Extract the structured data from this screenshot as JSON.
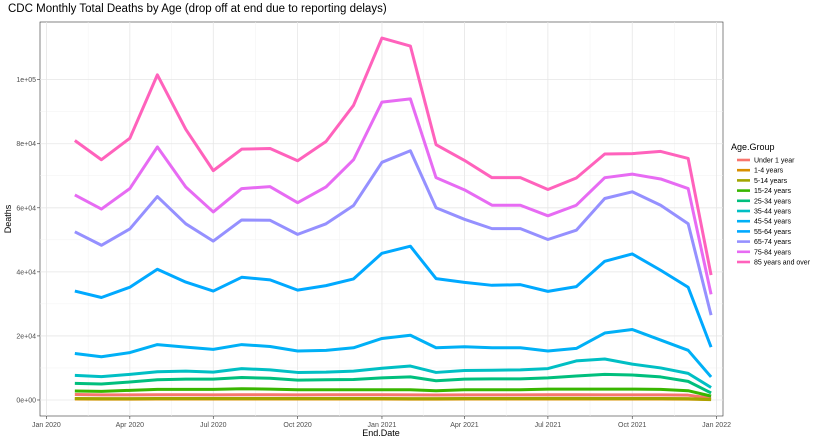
{
  "chart_data": {
    "type": "line",
    "title": "CDC Monthly Total Deaths by Age (drop off at end due to reporting delays)",
    "xlabel": "End.Date",
    "ylabel": "Deaths",
    "legend_title": "Age.Group",
    "legend_position": "right",
    "grid": true,
    "x": [
      "2020-02-01",
      "2020-03-01",
      "2020-04-01",
      "2020-05-01",
      "2020-06-01",
      "2020-07-01",
      "2020-08-01",
      "2020-09-01",
      "2020-10-01",
      "2020-11-01",
      "2020-12-01",
      "2021-01-01",
      "2021-02-01",
      "2021-03-01",
      "2021-04-01",
      "2021-05-01",
      "2021-06-01",
      "2021-07-01",
      "2021-08-01",
      "2021-09-01",
      "2021-10-01",
      "2021-11-01",
      "2021-12-01",
      "2021-12-26"
    ],
    "xlim": [
      "2019-12-25",
      "2022-01-08"
    ],
    "x_ticks": [
      {
        "date": "2020-01-01",
        "label": "Jan 2020"
      },
      {
        "date": "2020-04-01",
        "label": "Apr 2020"
      },
      {
        "date": "2020-07-01",
        "label": "Jul 2020"
      },
      {
        "date": "2020-10-01",
        "label": "Oct 2020"
      },
      {
        "date": "2021-01-01",
        "label": "Jan 2021"
      },
      {
        "date": "2021-04-01",
        "label": "Apr 2021"
      },
      {
        "date": "2021-07-01",
        "label": "Jul 2021"
      },
      {
        "date": "2021-10-01",
        "label": "Oct 2021"
      },
      {
        "date": "2022-01-01",
        "label": "Jan 2022"
      }
    ],
    "ylim": [
      -5000,
      118000
    ],
    "y_ticks": [
      {
        "value": 0,
        "label": "0e+00"
      },
      {
        "value": 20000,
        "label": "2e+04"
      },
      {
        "value": 40000,
        "label": "4e+04"
      },
      {
        "value": 60000,
        "label": "6e+04"
      },
      {
        "value": 80000,
        "label": "8e+04"
      },
      {
        "value": 100000,
        "label": "1e+05"
      }
    ],
    "series": [
      {
        "name": "Under 1 year",
        "color": "#F8766D",
        "values": [
          1700,
          1600,
          1600,
          1650,
          1650,
          1600,
          1650,
          1650,
          1600,
          1650,
          1650,
          1650,
          1600,
          1550,
          1600,
          1600,
          1600,
          1650,
          1650,
          1600,
          1600,
          1600,
          1500,
          600
        ]
      },
      {
        "name": "1-4 years",
        "color": "#D89000",
        "values": [
          300,
          280,
          280,
          300,
          300,
          300,
          310,
          300,
          300,
          300,
          300,
          300,
          280,
          270,
          290,
          300,
          300,
          310,
          310,
          300,
          300,
          300,
          270,
          100
        ]
      },
      {
        "name": "5-14 years",
        "color": "#A3A500",
        "values": [
          450,
          430,
          420,
          450,
          460,
          460,
          480,
          470,
          460,
          470,
          470,
          470,
          440,
          430,
          460,
          470,
          470,
          490,
          490,
          480,
          480,
          470,
          430,
          150
        ]
      },
      {
        "name": "15-24 years",
        "color": "#39B600",
        "values": [
          2800,
          2700,
          3000,
          3300,
          3300,
          3300,
          3500,
          3400,
          3200,
          3200,
          3200,
          3200,
          3200,
          2900,
          3200,
          3200,
          3200,
          3400,
          3400,
          3400,
          3400,
          3300,
          2900,
          1200
        ]
      },
      {
        "name": "25-34 years",
        "color": "#00BF7D",
        "values": [
          5200,
          5000,
          5600,
          6300,
          6500,
          6500,
          7000,
          6800,
          6200,
          6300,
          6400,
          6900,
          7200,
          6000,
          6500,
          6600,
          6600,
          6900,
          7500,
          8000,
          7800,
          7200,
          5800,
          2200
        ]
      },
      {
        "name": "35-44 years",
        "color": "#00BFC4",
        "values": [
          7700,
          7300,
          8000,
          8800,
          9000,
          8700,
          9800,
          9400,
          8600,
          8700,
          9000,
          9900,
          10600,
          8600,
          9200,
          9300,
          9400,
          9800,
          12200,
          12800,
          11200,
          10000,
          8300,
          3900
        ]
      },
      {
        "name": "45-54 years",
        "color": "#00B0F6",
        "values": [
          14500,
          13500,
          14800,
          17300,
          16500,
          15800,
          17300,
          16700,
          15300,
          15500,
          16300,
          19200,
          20200,
          16300,
          16600,
          16300,
          16300,
          15300,
          16100,
          20900,
          22000,
          18700,
          15500,
          7200
        ]
      },
      {
        "name": "55-64 years",
        "color": "#00A9FF",
        "values": [
          34000,
          32000,
          35200,
          40800,
          36800,
          34000,
          38300,
          37500,
          34300,
          35700,
          37800,
          45800,
          48000,
          37900,
          36700,
          35800,
          36000,
          33900,
          35400,
          43300,
          45600,
          40500,
          35200,
          16500
        ]
      },
      {
        "name": "65-74 years",
        "color": "#9590FF",
        "values": [
          52500,
          48300,
          53400,
          63500,
          55000,
          49600,
          56200,
          56100,
          51700,
          55000,
          60700,
          74200,
          77800,
          60000,
          56400,
          53500,
          53500,
          50100,
          53000,
          62900,
          65000,
          60800,
          55000,
          26500
        ]
      },
      {
        "name": "75-84 years",
        "color": "#E76BF3",
        "values": [
          64000,
          59600,
          66000,
          79000,
          66500,
          58700,
          66000,
          66600,
          61600,
          66500,
          75000,
          93000,
          94000,
          69400,
          65600,
          60800,
          60800,
          57500,
          60800,
          69400,
          70500,
          69000,
          66000,
          33000
        ]
      },
      {
        "name": "85 years and over",
        "color": "#FF62BC",
        "values": [
          81000,
          75000,
          81700,
          101500,
          84500,
          71600,
          78300,
          78500,
          74700,
          80700,
          92000,
          113000,
          110500,
          79700,
          74800,
          69400,
          69400,
          65700,
          69300,
          76800,
          76900,
          77600,
          75400,
          39000
        ]
      }
    ]
  }
}
